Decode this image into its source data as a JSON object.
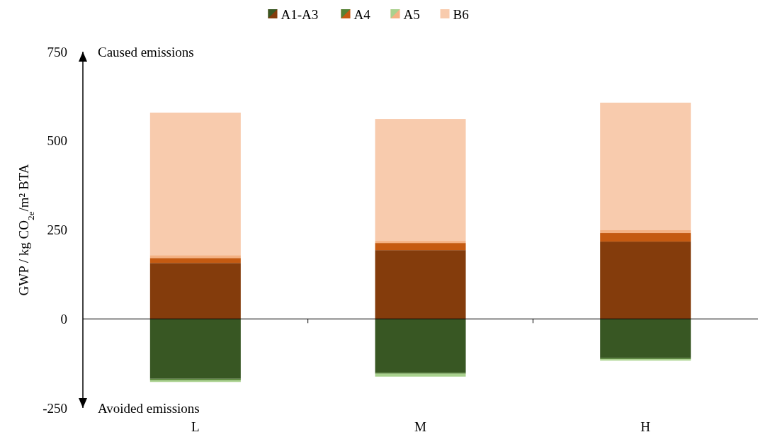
{
  "chart_data": {
    "type": "bar",
    "stacked": true,
    "ylabel": "GWP / kg CO$_{2e}$/m² BTA",
    "categories": [
      "L",
      "M",
      "H"
    ],
    "series": [
      {
        "name": "A1-A3",
        "color": "#843c0c",
        "values": [
          157,
          193,
          217
        ]
      },
      {
        "name": "A4",
        "color": "#c55a11",
        "values": [
          14,
          20,
          24
        ]
      },
      {
        "name": "A5",
        "color": "#f4b183",
        "values": [
          8,
          6,
          8
        ]
      },
      {
        "name": "B6",
        "color": "#f8cbad",
        "values": [
          400,
          342,
          358
        ]
      },
      {
        "color": "#385723",
        "values": [
          -168,
          -151,
          -110
        ]
      },
      {
        "color": "#548235",
        "values": [
          -4,
          -3,
          -3
        ]
      },
      {
        "color": "#a9d18e",
        "values": [
          -5,
          -8,
          -4
        ]
      }
    ],
    "ylim": [
      -250,
      750
    ],
    "yticks": [
      750,
      500,
      250,
      0,
      -250
    ],
    "legend": "top",
    "annotations": [
      "Caused emissions",
      "Avoided emissions"
    ]
  }
}
